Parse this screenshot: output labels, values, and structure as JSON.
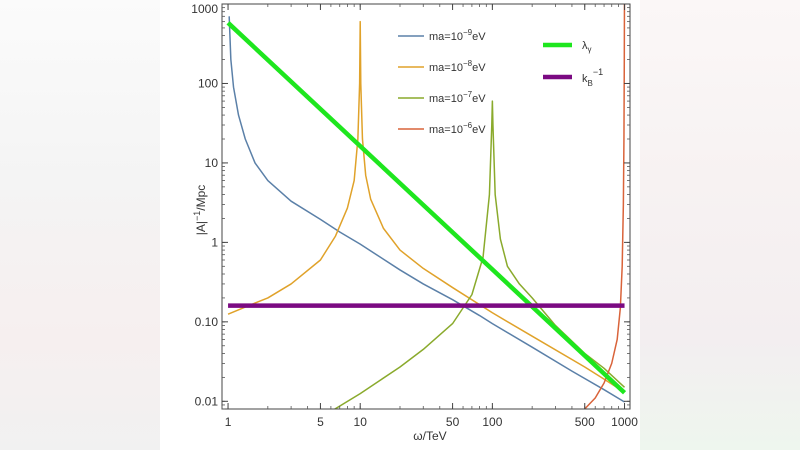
{
  "chart_data": {
    "type": "line",
    "title": "",
    "xlabel": "ω/TeV",
    "ylabel": "|A|⁻¹/Mpc",
    "xscale": "log",
    "yscale": "log",
    "xlim": [
      0.9,
      1100
    ],
    "ylim": [
      0.008,
      1000
    ],
    "grid": false,
    "x_ticks": [
      {
        "value": 1,
        "label": "1"
      },
      {
        "value": 5,
        "label": "5"
      },
      {
        "value": 10,
        "label": "10"
      },
      {
        "value": 50,
        "label": "50"
      },
      {
        "value": 100,
        "label": "100"
      },
      {
        "value": 500,
        "label": "500"
      },
      {
        "value": 1000,
        "label": "1000"
      }
    ],
    "y_ticks": [
      {
        "value": 0.01,
        "label": "0.01"
      },
      {
        "value": 0.1,
        "label": "0.10"
      },
      {
        "value": 1,
        "label": "1"
      },
      {
        "value": 10,
        "label": "10"
      },
      {
        "value": 100,
        "label": "100"
      },
      {
        "value": 1000,
        "label": "1000"
      }
    ],
    "legend_position": "top-right",
    "series": [
      {
        "name": "ma=10⁻⁹eV",
        "color": "#5b80a8",
        "points": [
          [
            1.02,
            700
          ],
          [
            1.05,
            200
          ],
          [
            1.1,
            90
          ],
          [
            1.2,
            40
          ],
          [
            1.35,
            20
          ],
          [
            1.6,
            10
          ],
          [
            2,
            6
          ],
          [
            3,
            3.3
          ],
          [
            5,
            1.95
          ],
          [
            7,
            1.35
          ],
          [
            10,
            0.95
          ],
          [
            20,
            0.45
          ],
          [
            30,
            0.3
          ],
          [
            50,
            0.19
          ],
          [
            80,
            0.12
          ],
          [
            100,
            0.095
          ],
          [
            200,
            0.048
          ],
          [
            400,
            0.024
          ],
          [
            700,
            0.014
          ],
          [
            1000,
            0.0098
          ]
        ]
      },
      {
        "name": "ma=10⁻⁸eV",
        "color": "#e0a22a",
        "points": [
          [
            1,
            0.125
          ],
          [
            1.5,
            0.165
          ],
          [
            2,
            0.2
          ],
          [
            3,
            0.3
          ],
          [
            5,
            0.6
          ],
          [
            6.5,
            1.2
          ],
          [
            8,
            2.7
          ],
          [
            9,
            6
          ],
          [
            9.6,
            20
          ],
          [
            9.9,
            100
          ],
          [
            10,
            600
          ],
          [
            10.1,
            100
          ],
          [
            10.4,
            20
          ],
          [
            11,
            7
          ],
          [
            12,
            3.5
          ],
          [
            15,
            1.5
          ],
          [
            20,
            0.8
          ],
          [
            30,
            0.47
          ],
          [
            50,
            0.27
          ],
          [
            100,
            0.13
          ],
          [
            200,
            0.066
          ],
          [
            500,
            0.027
          ],
          [
            700,
            0.019
          ],
          [
            1000,
            0.013
          ]
        ]
      },
      {
        "name": "ma=10⁻⁷eV",
        "color": "#8aaa2c",
        "points": [
          [
            5.8,
            0.0072
          ],
          [
            10,
            0.0125
          ],
          [
            20,
            0.027
          ],
          [
            30,
            0.045
          ],
          [
            50,
            0.095
          ],
          [
            70,
            0.22
          ],
          [
            85,
            0.65
          ],
          [
            95,
            4
          ],
          [
            99,
            30
          ],
          [
            100,
            60
          ],
          [
            101,
            30
          ],
          [
            105,
            4
          ],
          [
            115,
            1.1
          ],
          [
            130,
            0.5
          ],
          [
            160,
            0.3
          ],
          [
            200,
            0.2
          ],
          [
            300,
            0.09
          ],
          [
            500,
            0.04
          ],
          [
            700,
            0.026
          ],
          [
            1000,
            0.015
          ]
        ]
      },
      {
        "name": "ma=10⁻⁶eV",
        "color": "#d9633a",
        "points": [
          [
            470,
            0.0072
          ],
          [
            600,
            0.011
          ],
          [
            700,
            0.017
          ],
          [
            800,
            0.03
          ],
          [
            880,
            0.06
          ],
          [
            930,
            0.15
          ],
          [
            960,
            0.5
          ],
          [
            980,
            3
          ],
          [
            990,
            20
          ],
          [
            996,
            200
          ],
          [
            999,
            1200
          ]
        ]
      },
      {
        "name": "λγ",
        "color": "#1ee61e",
        "points": [
          [
            1,
            580
          ],
          [
            1000,
            0.0128
          ]
        ]
      },
      {
        "name": "kB⁻¹",
        "color": "#7b0a82",
        "points": [
          [
            1,
            0.16
          ],
          [
            1000,
            0.16
          ]
        ]
      }
    ]
  },
  "legend": {
    "items": [
      {
        "series": 0,
        "base": "ma=10",
        "exp": "−9",
        "unit": "eV",
        "color": "#5b80a8"
      },
      {
        "series": 1,
        "base": "ma=10",
        "exp": "−8",
        "unit": "eV",
        "color": "#e0a22a"
      },
      {
        "series": 2,
        "base": "ma=10",
        "exp": "−7",
        "unit": "eV",
        "color": "#8aaa2c"
      },
      {
        "series": 3,
        "base": "ma=10",
        "exp": "−6",
        "unit": "eV",
        "color": "#d9633a"
      }
    ],
    "lambda": {
      "base": "λ",
      "sub": "γ",
      "color": "#1ee61e"
    },
    "kb": {
      "base": "k",
      "sub": "B",
      "sup": "−1",
      "color": "#7b0a82"
    }
  },
  "axis_titles": {
    "x": "ω/TeV",
    "y_prefix": "|A|",
    "y_exp": "−1",
    "y_suffix": "/Mpc"
  }
}
